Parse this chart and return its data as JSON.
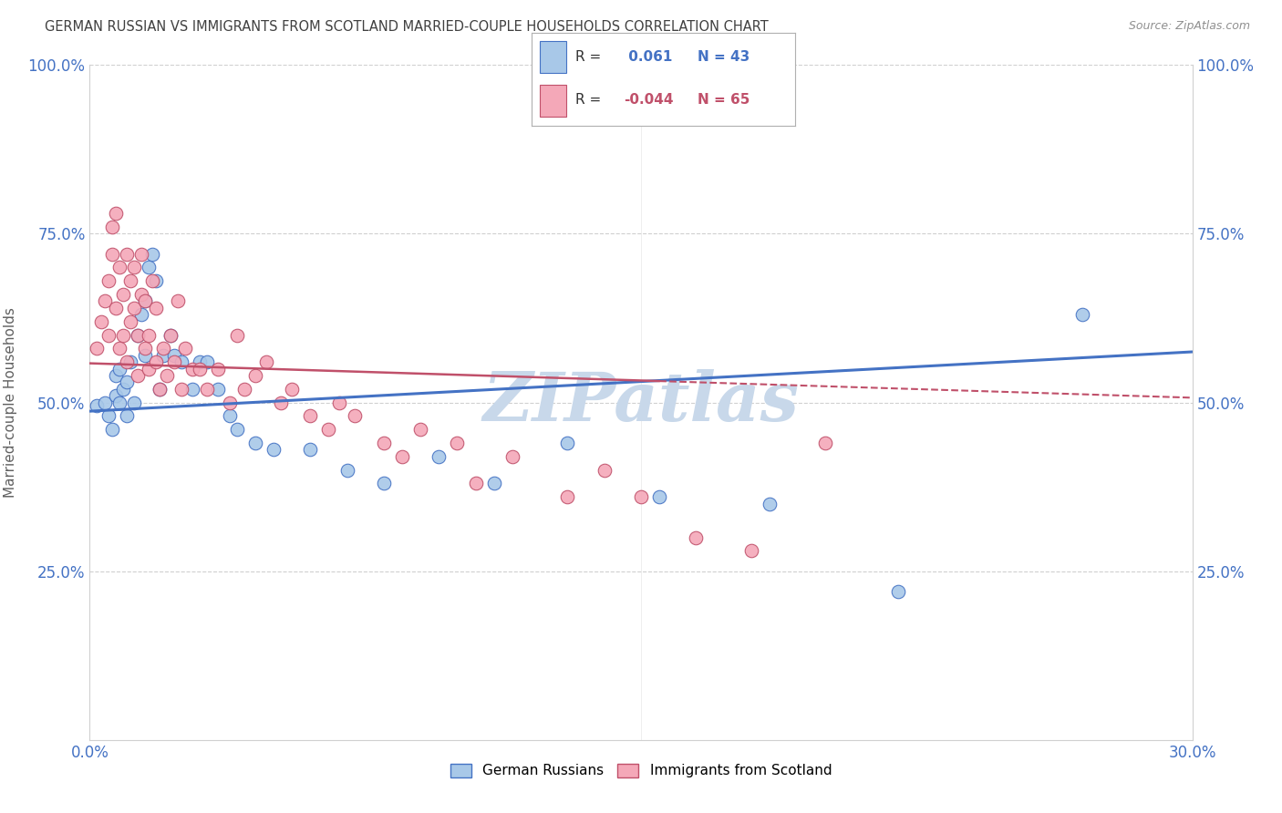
{
  "title": "GERMAN RUSSIAN VS IMMIGRANTS FROM SCOTLAND MARRIED-COUPLE HOUSEHOLDS CORRELATION CHART",
  "source": "Source: ZipAtlas.com",
  "ylabel": "Married-couple Households",
  "xlim": [
    0.0,
    0.3
  ],
  "ylim": [
    0.0,
    1.0
  ],
  "yticks": [
    0.0,
    0.25,
    0.5,
    0.75,
    1.0
  ],
  "ytick_labels_left": [
    "",
    "25.0%",
    "50.0%",
    "75.0%",
    "100.0%"
  ],
  "ytick_labels_right": [
    "",
    "25.0%",
    "50.0%",
    "75.0%",
    "100.0%"
  ],
  "xticks": [
    0.0,
    0.05,
    0.1,
    0.15,
    0.2,
    0.25,
    0.3
  ],
  "xtick_labels": [
    "0.0%",
    "",
    "",
    "",
    "",
    "",
    "30.0%"
  ],
  "series1_label": "German Russians",
  "series2_label": "Immigrants from Scotland",
  "R1": 0.061,
  "N1": 43,
  "R2": -0.044,
  "N2": 65,
  "color1": "#a8c8e8",
  "color2": "#f4a8b8",
  "line_color1": "#4472c4",
  "line_color2": "#c0506a",
  "watermark": "ZIPatlas",
  "watermark_color": "#c8d8ea",
  "background_color": "#ffffff",
  "title_color": "#404040",
  "axis_label_color": "#4472c4",
  "grid_color": "#d0d0d0",
  "scatter1_x": [
    0.002,
    0.004,
    0.005,
    0.006,
    0.007,
    0.007,
    0.008,
    0.008,
    0.009,
    0.01,
    0.01,
    0.011,
    0.012,
    0.013,
    0.014,
    0.015,
    0.015,
    0.016,
    0.017,
    0.018,
    0.019,
    0.02,
    0.022,
    0.023,
    0.025,
    0.028,
    0.03,
    0.032,
    0.035,
    0.038,
    0.04,
    0.045,
    0.05,
    0.06,
    0.07,
    0.08,
    0.095,
    0.11,
    0.13,
    0.155,
    0.185,
    0.22,
    0.27
  ],
  "scatter1_y": [
    0.495,
    0.5,
    0.48,
    0.46,
    0.51,
    0.54,
    0.5,
    0.55,
    0.52,
    0.48,
    0.53,
    0.56,
    0.5,
    0.6,
    0.63,
    0.57,
    0.65,
    0.7,
    0.72,
    0.68,
    0.52,
    0.57,
    0.6,
    0.57,
    0.56,
    0.52,
    0.56,
    0.56,
    0.52,
    0.48,
    0.46,
    0.44,
    0.43,
    0.43,
    0.4,
    0.38,
    0.42,
    0.38,
    0.44,
    0.36,
    0.35,
    0.22,
    0.63
  ],
  "scatter2_x": [
    0.002,
    0.003,
    0.004,
    0.005,
    0.005,
    0.006,
    0.006,
    0.007,
    0.007,
    0.008,
    0.008,
    0.009,
    0.009,
    0.01,
    0.01,
    0.011,
    0.011,
    0.012,
    0.012,
    0.013,
    0.013,
    0.014,
    0.014,
    0.015,
    0.015,
    0.016,
    0.016,
    0.017,
    0.018,
    0.018,
    0.019,
    0.02,
    0.021,
    0.022,
    0.023,
    0.024,
    0.025,
    0.026,
    0.028,
    0.03,
    0.032,
    0.035,
    0.038,
    0.04,
    0.042,
    0.045,
    0.048,
    0.052,
    0.055,
    0.06,
    0.065,
    0.068,
    0.072,
    0.08,
    0.085,
    0.09,
    0.1,
    0.105,
    0.115,
    0.13,
    0.14,
    0.15,
    0.165,
    0.18,
    0.2
  ],
  "scatter2_y": [
    0.58,
    0.62,
    0.65,
    0.68,
    0.6,
    0.72,
    0.76,
    0.78,
    0.64,
    0.7,
    0.58,
    0.6,
    0.66,
    0.72,
    0.56,
    0.68,
    0.62,
    0.7,
    0.64,
    0.6,
    0.54,
    0.66,
    0.72,
    0.58,
    0.65,
    0.6,
    0.55,
    0.68,
    0.56,
    0.64,
    0.52,
    0.58,
    0.54,
    0.6,
    0.56,
    0.65,
    0.52,
    0.58,
    0.55,
    0.55,
    0.52,
    0.55,
    0.5,
    0.6,
    0.52,
    0.54,
    0.56,
    0.5,
    0.52,
    0.48,
    0.46,
    0.5,
    0.48,
    0.44,
    0.42,
    0.46,
    0.44,
    0.38,
    0.42,
    0.36,
    0.4,
    0.36,
    0.3,
    0.28,
    0.44
  ],
  "line1_x0": 0.0,
  "line1_y0": 0.487,
  "line1_x1": 0.3,
  "line1_y1": 0.575,
  "line2_x0": 0.0,
  "line2_y0": 0.558,
  "line2_x1": 0.3,
  "line2_y1": 0.507,
  "line2_solid_end": 0.155
}
